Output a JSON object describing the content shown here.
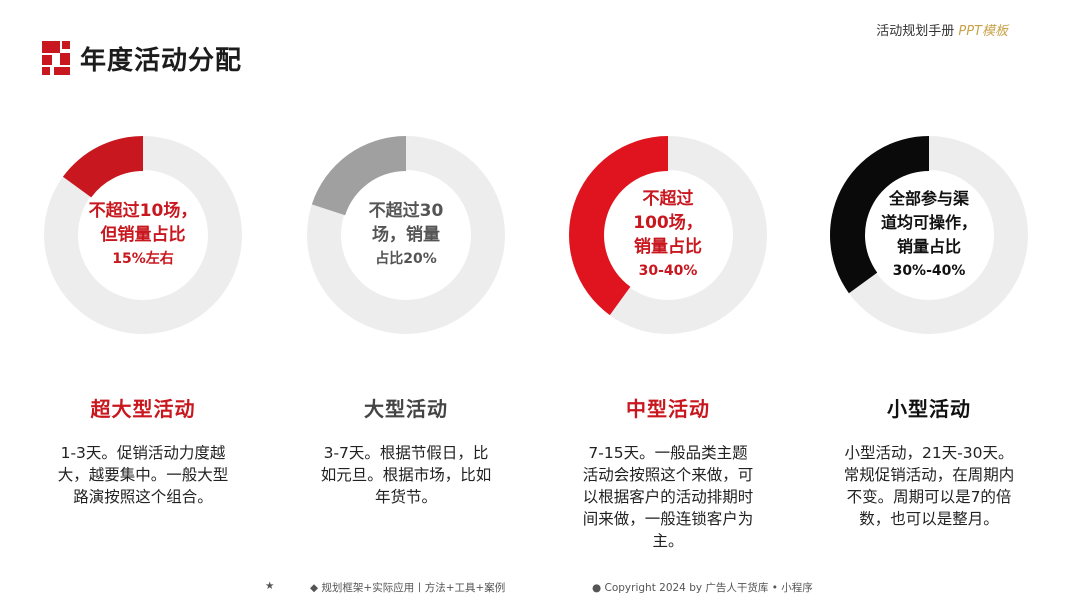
{
  "header": {
    "title": "年度活动分配",
    "brand_main": "活动规划手册",
    "brand_highlight": "PPT模板"
  },
  "categories": [
    {
      "name": "超大型活动",
      "percent": 15,
      "color": "#c8171e",
      "donut_lines": [
        "不超过10场，",
        "但销量占比",
        "15%左右"
      ],
      "desc_lines": [
        "1-3天。促销活动力度越",
        "大，越要集中。一般大型",
        "路演按照这个组合。"
      ]
    },
    {
      "name": "大型活动",
      "percent": 20,
      "color": "#a0a0a0",
      "donut_lines": [
        "不超过30",
        "场，销量",
        "占比20%"
      ],
      "desc_lines": [
        "3-7天。根据节假日，比",
        "如元旦。根据市场，比如",
        "年货节。"
      ]
    },
    {
      "name": "中型活动",
      "percent": 40,
      "color": "#e0141e",
      "donut_lines": [
        "不超过",
        "100场，",
        "销量占比",
        "30-40%"
      ],
      "desc_lines": [
        "7-15天。一般品类主题",
        "活动会按照这个来做，可",
        "以根据客户的活动排期时",
        "间来做，一般连锁客户为",
        "主。"
      ]
    },
    {
      "name": "小型活动",
      "percent": 35,
      "color": "#0a0a0a",
      "donut_lines": [
        "全部参与渠",
        "道均可操作，",
        "销量占比",
        "30%-40%"
      ],
      "desc_lines": [
        "小型活动，21天-30天。",
        "常规促销活动，在周期内",
        "不变。周期可以是7的倍",
        "数，也可以是整月。"
      ]
    }
  ],
  "footer": {
    "star": "★",
    "left": "◆ 规划框架+实际应用丨方法+工具+案例",
    "right": "● Copyright 2024 by 广告人干货库 • 小程序"
  },
  "colors": {
    "ring_bg": "#ededed",
    "accent_red": "#c8171e"
  }
}
